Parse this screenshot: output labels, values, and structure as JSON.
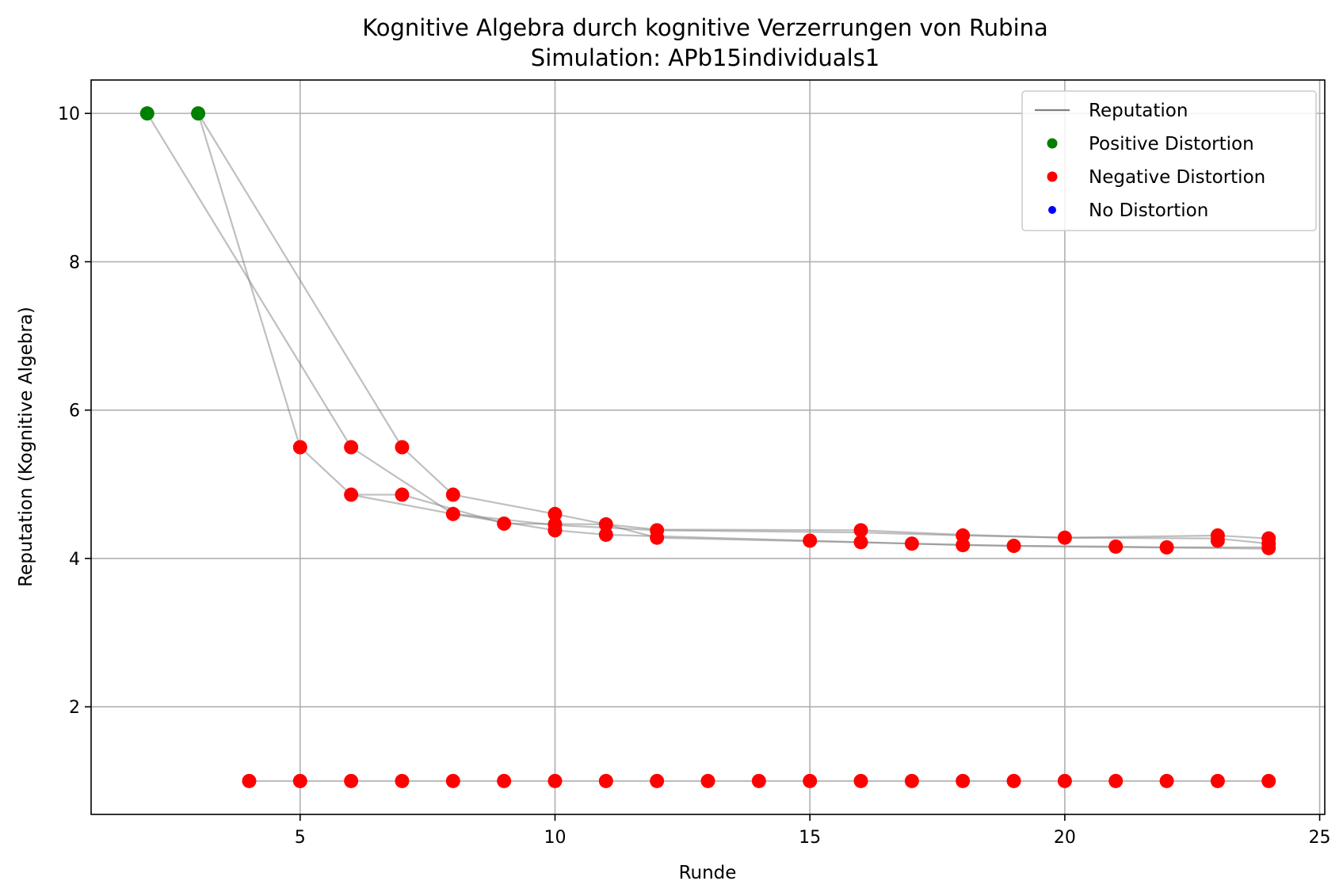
{
  "chart_data": {
    "type": "scatter",
    "title": "Kognitive Algebra durch kognitive Verzerrungen von Rubina",
    "subtitle": "Simulation: APb15individuals1",
    "xlabel": "Runde",
    "ylabel": "Reputation (Kognitive Algebra)",
    "xlim": [
      0.9,
      25.1
    ],
    "ylim": [
      0.55,
      10.45
    ],
    "xticks": [
      5,
      10,
      15,
      20,
      25
    ],
    "yticks": [
      2,
      4,
      6,
      8,
      10
    ],
    "grid": true,
    "legend_position": "top-right",
    "legend": [
      {
        "label": "Reputation",
        "kind": "line",
        "color": "#808080"
      },
      {
        "label": "Positive Distortion",
        "kind": "marker",
        "color": "#008000"
      },
      {
        "label": "Negative Distortion",
        "kind": "marker",
        "color": "#ff0000"
      },
      {
        "label": "No Distortion",
        "kind": "marker",
        "color": "#0000ff"
      }
    ],
    "series": [
      {
        "x": [
          2,
          6,
          8,
          10,
          12,
          16,
          18,
          20,
          23,
          24
        ],
        "y": [
          10,
          5.5,
          4.6,
          4.45,
          4.38,
          4.35,
          4.31,
          4.28,
          4.27,
          4.2
        ]
      },
      {
        "x": [
          3,
          5,
          6,
          8,
          10,
          11,
          15,
          16,
          18,
          20,
          23,
          24
        ],
        "y": [
          10,
          5.5,
          4.86,
          4.6,
          4.38,
          4.32,
          4.24,
          4.22,
          4.18,
          4.16,
          4.14,
          4.13
        ]
      },
      {
        "x": [
          3,
          7,
          8,
          10,
          11,
          12,
          16,
          18,
          20,
          23,
          24
        ],
        "y": [
          10,
          5.5,
          4.86,
          4.6,
          4.46,
          4.39,
          4.38,
          4.32,
          4.28,
          4.31,
          4.27
        ]
      },
      {
        "x": [
          6,
          7,
          9,
          11,
          12,
          17,
          19,
          21,
          22,
          24
        ],
        "y": [
          4.86,
          4.86,
          4.47,
          4.46,
          4.28,
          4.2,
          4.17,
          4.16,
          4.15,
          4.15
        ]
      },
      {
        "x": [
          4,
          5,
          6,
          7,
          8,
          9,
          10,
          11,
          12,
          13,
          14,
          15,
          16,
          17,
          18,
          19,
          20,
          21,
          22,
          23,
          24
        ],
        "y": [
          1,
          1,
          1,
          1,
          1,
          1,
          1,
          1,
          1,
          1,
          1,
          1,
          1,
          1,
          1,
          1,
          1,
          1,
          1,
          1,
          1
        ]
      }
    ],
    "points": {
      "positive": [
        [
          2,
          10
        ],
        [
          3,
          10
        ]
      ],
      "negative": [
        [
          5,
          5.5
        ],
        [
          6,
          5.5
        ],
        [
          7,
          5.5
        ],
        [
          6,
          4.86
        ],
        [
          7,
          4.86
        ],
        [
          8,
          4.86
        ],
        [
          8,
          4.6
        ],
        [
          9,
          4.47
        ],
        [
          10,
          4.6
        ],
        [
          10,
          4.46
        ],
        [
          10,
          4.38
        ],
        [
          11,
          4.46
        ],
        [
          11,
          4.32
        ],
        [
          12,
          4.38
        ],
        [
          12,
          4.28
        ],
        [
          15,
          4.24
        ],
        [
          16,
          4.38
        ],
        [
          16,
          4.22
        ],
        [
          17,
          4.2
        ],
        [
          18,
          4.31
        ],
        [
          18,
          4.18
        ],
        [
          19,
          4.17
        ],
        [
          20,
          4.28
        ],
        [
          21,
          4.16
        ],
        [
          22,
          4.15
        ],
        [
          23,
          4.31
        ],
        [
          23,
          4.24
        ],
        [
          24,
          4.27
        ],
        [
          24,
          4.2
        ],
        [
          24,
          4.14
        ],
        [
          4,
          1
        ],
        [
          5,
          1
        ],
        [
          6,
          1
        ],
        [
          7,
          1
        ],
        [
          8,
          1
        ],
        [
          9,
          1
        ],
        [
          10,
          1
        ],
        [
          11,
          1
        ],
        [
          12,
          1
        ],
        [
          13,
          1
        ],
        [
          14,
          1
        ],
        [
          15,
          1
        ],
        [
          16,
          1
        ],
        [
          17,
          1
        ],
        [
          18,
          1
        ],
        [
          19,
          1
        ],
        [
          20,
          1
        ],
        [
          21,
          1
        ],
        [
          22,
          1
        ],
        [
          23,
          1
        ],
        [
          24,
          1
        ]
      ],
      "none": []
    }
  }
}
